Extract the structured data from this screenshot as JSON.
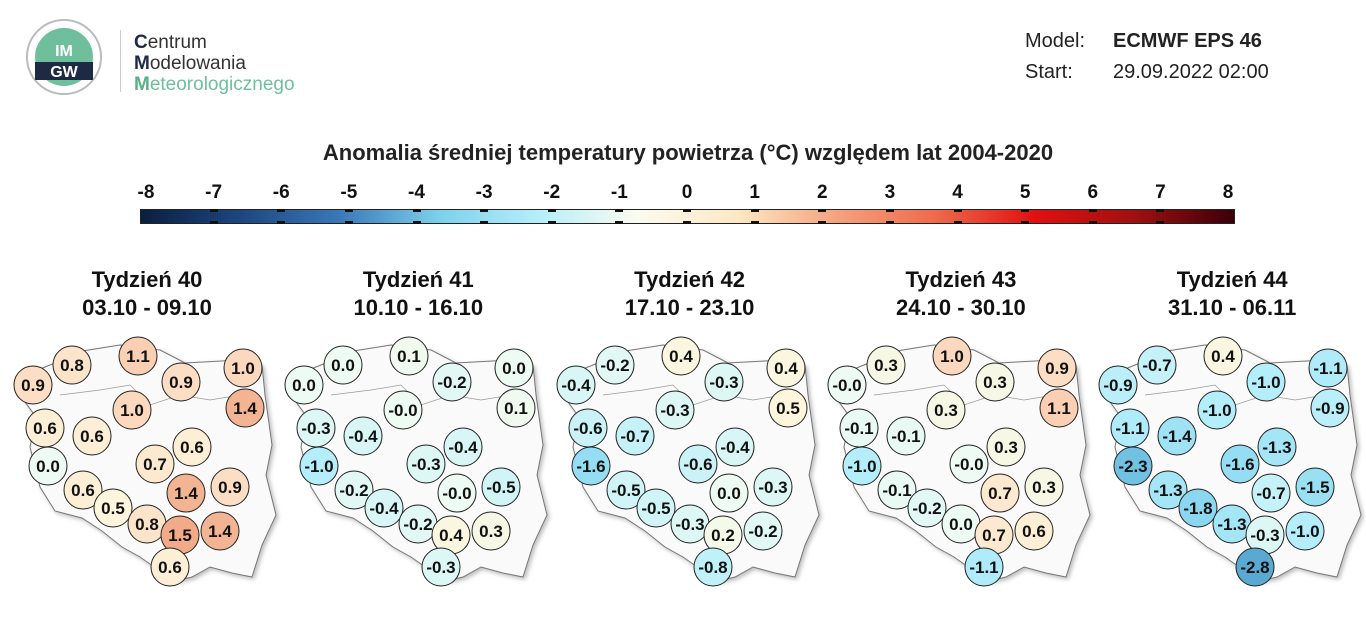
{
  "header": {
    "brand_lines": [
      {
        "initial": "C",
        "rest": "entrum"
      },
      {
        "initial": "M",
        "rest": "odelowania"
      },
      {
        "initial": "M",
        "rest": "eteorologicznego"
      }
    ],
    "logo_text": "IMGW",
    "model_label": "Model:",
    "model_value": "ECMWF EPS 46",
    "start_label": "Start:",
    "start_value": "29.09.2022 02:00"
  },
  "chart_data": {
    "type": "map-bubbles",
    "title": "Anomalia średniej temperatury powietrza (°C) względem lat 2004-2020",
    "colorbar": {
      "ticks": [
        -8,
        -7,
        -6,
        -5,
        -4,
        -3,
        -2,
        -1,
        0,
        1,
        2,
        3,
        4,
        5,
        6,
        7,
        8
      ],
      "range": [
        -8,
        8
      ],
      "colors": [
        "#0b1f3f",
        "#1d4680",
        "#3a78b8",
        "#7dd0ec",
        "#b5eefa",
        "#fbfbf0",
        "#fde8c4",
        "#f5a27e",
        "#ee6a4a",
        "#e01010",
        "#a01010",
        "#3a0008"
      ]
    },
    "weeks": [
      {
        "title": "Tydzień 40",
        "dates": "03.10 - 09.10",
        "values": [
          "0.9",
          "0.8",
          "1.1",
          "0.9",
          "1.0",
          "1.4",
          "1.0",
          "0.6",
          "0.6",
          "0.0",
          "0.7",
          "0.6",
          "0.9",
          "1.4",
          "0.6",
          "0.5",
          "0.8",
          "1.5",
          "1.4",
          "0.6"
        ]
      },
      {
        "title": "Tydzień 41",
        "dates": "10.10 - 16.10",
        "values": [
          "0.0",
          "0.0",
          "0.1",
          "-0.2",
          "0.0",
          "0.1",
          "-0.0",
          "-0.3",
          "-0.4",
          "-1.0",
          "-0.3",
          "-0.4",
          "-0.5",
          "-0.0",
          "-0.2",
          "-0.4",
          "-0.2",
          "0.4",
          "0.3",
          "-0.3"
        ]
      },
      {
        "title": "Tydzień 42",
        "dates": "17.10 - 23.10",
        "values": [
          "-0.4",
          "-0.2",
          "0.4",
          "-0.3",
          "0.4",
          "0.5",
          "-0.3",
          "-0.6",
          "-0.7",
          "-1.6",
          "-0.6",
          "-0.4",
          "-0.3",
          "0.0",
          "-0.5",
          "-0.5",
          "-0.3",
          "0.2",
          "-0.2",
          "-0.8"
        ]
      },
      {
        "title": "Tydzień 43",
        "dates": "24.10 - 30.10",
        "values": [
          "-0.0",
          "0.3",
          "1.0",
          "0.3",
          "0.9",
          "1.1",
          "0.3",
          "-0.1",
          "-0.1",
          "-1.0",
          "-0.0",
          "0.3",
          "0.3",
          "0.7",
          "-0.1",
          "-0.2",
          "0.0",
          "0.7",
          "0.6",
          "-1.1"
        ]
      },
      {
        "title": "Tydzień 44",
        "dates": "31.10 - 06.11",
        "values": [
          "-0.9",
          "-0.7",
          "0.4",
          "-1.0",
          "-1.1",
          "-0.9",
          "-1.0",
          "-1.1",
          "-1.4",
          "-2.3",
          "-1.6",
          "-1.3",
          "-1.5",
          "-0.7",
          "-1.3",
          "-1.8",
          "-1.3",
          "-0.3",
          "-1.0",
          "-2.8"
        ]
      }
    ]
  }
}
